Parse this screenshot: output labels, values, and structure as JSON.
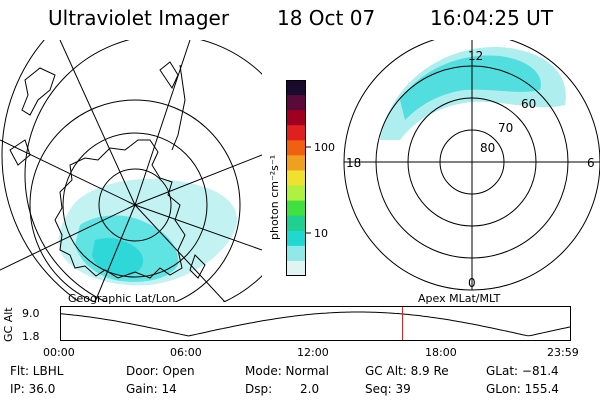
{
  "header": {
    "title": "Ultraviolet Imager",
    "date": "18 Oct 07",
    "time": "16:04:25 UT"
  },
  "left_panel": {
    "label": "Geographic Lat/Lon"
  },
  "right_panel": {
    "label": "Apex MLat/MLT",
    "mlt_labels": [
      "12",
      "18",
      "6",
      "0"
    ],
    "mlat_labels": [
      "60",
      "70",
      "80"
    ]
  },
  "colorbar": {
    "unit": "photon cm⁻²s⁻¹",
    "ticks": [
      "100",
      "10"
    ],
    "colors": [
      "#1a0a2e",
      "#5a0a3a",
      "#a00020",
      "#e02020",
      "#f06010",
      "#f0a020",
      "#f0e030",
      "#b0f040",
      "#40e040",
      "#20d090",
      "#20d8d0",
      "#90e8e8",
      "#e0f4f4"
    ]
  },
  "altitude_strip": {
    "axis_label": "GC Alt",
    "y_ticks": [
      "9.0",
      "1.8"
    ],
    "x_ticks": [
      "00:00",
      "06:00",
      "12:00",
      "18:00",
      "23:59"
    ],
    "marker_time_fraction": 0.6697,
    "marker_color": "#cc2222"
  },
  "info": {
    "flt": "Flt: LBHL",
    "ip": "IP: 36.0",
    "door": "Door: Open",
    "gain": "Gain: 14",
    "mode": "Mode: Normal",
    "dsp_label": "Dsp:",
    "dsp_value": "2.0",
    "gc_alt": "GC Alt: 8.9 Re",
    "seq": "Seq: 39",
    "glat": "GLat: −81.4",
    "glon": "GLon: 155.4"
  },
  "colors": {
    "aurora": "#28d6d6",
    "aurora_light": "#a6ecec"
  }
}
